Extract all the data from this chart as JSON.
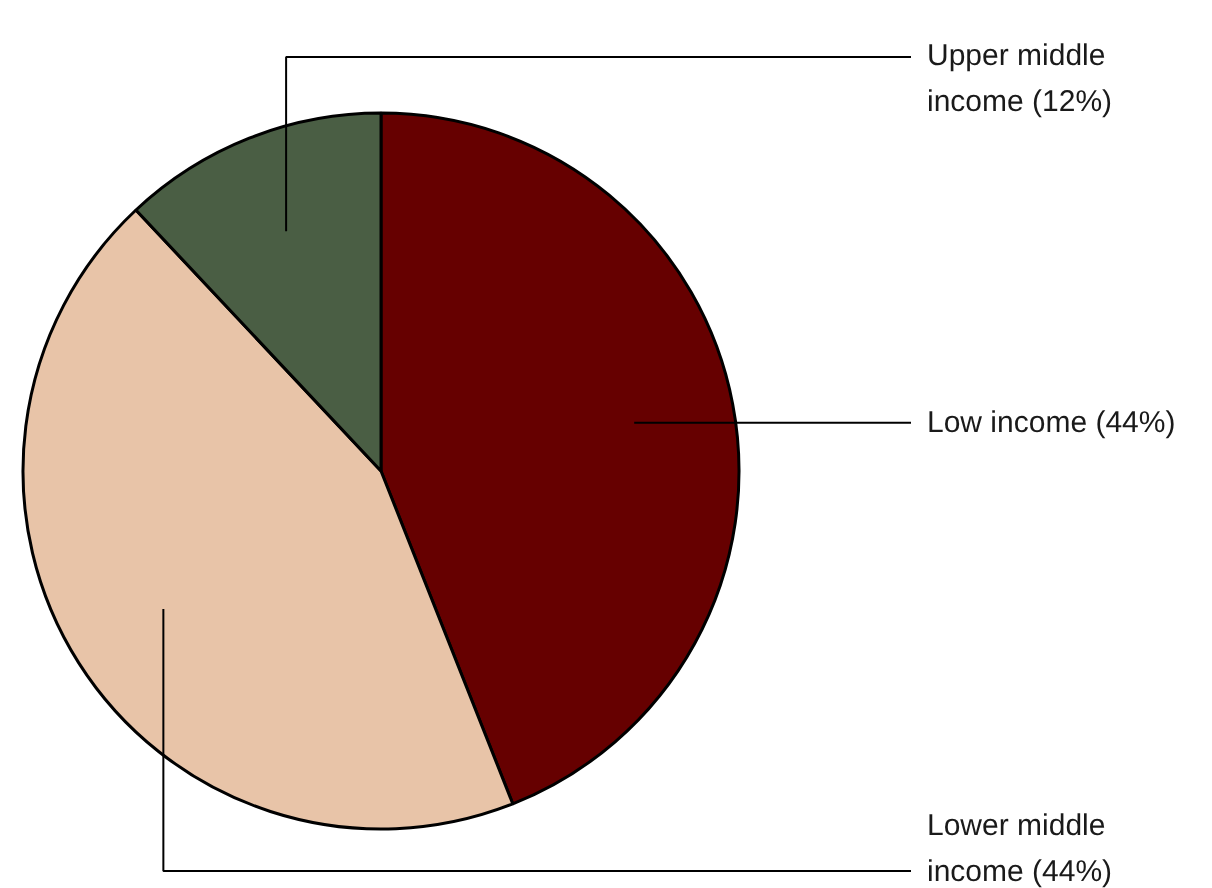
{
  "chart_data": {
    "type": "pie",
    "categories": [
      "Low income",
      "Lower middle income",
      "Upper middle income"
    ],
    "values": [
      44,
      44,
      12
    ],
    "value_labels": [
      "(44%)",
      "(44%)",
      "(12%)"
    ],
    "colors": [
      "#660000",
      "#e8c4a8",
      "#4a5e44"
    ]
  }
}
